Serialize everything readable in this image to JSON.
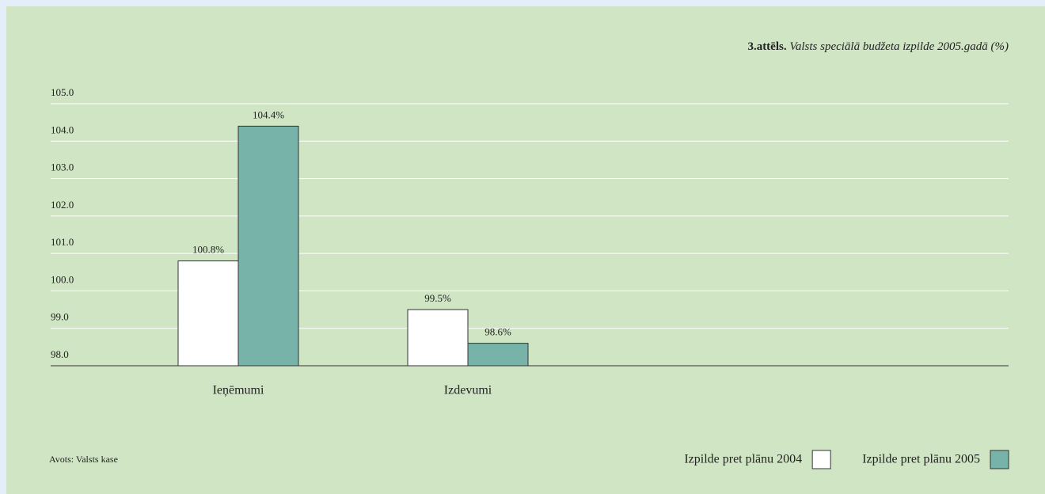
{
  "chart_data": {
    "type": "bar",
    "title_label": "3.attēls.",
    "title": "Valsts speciālā budžeta izpilde 2005.gadā (%)",
    "categories": [
      "Ieņēmumi",
      "Izdevumi"
    ],
    "series": [
      {
        "name": "Izpilde pret plānu 2004",
        "color": "#ffffff",
        "values": [
          100.8,
          99.5
        ],
        "value_labels": [
          "100.8%",
          "99.5%"
        ]
      },
      {
        "name": "Izpilde pret plānu 2005",
        "color": "#78b3aa",
        "values": [
          104.4,
          98.6
        ],
        "value_labels": [
          "104.4%",
          "98.6%"
        ]
      }
    ],
    "ylim": [
      98,
      105
    ],
    "yticks": [
      {
        "value": 98,
        "label": "98.0"
      },
      {
        "value": 99,
        "label": "99.0"
      },
      {
        "value": 100,
        "label": "100.0"
      },
      {
        "value": 101,
        "label": "101.0"
      },
      {
        "value": 102,
        "label": "102.0"
      },
      {
        "value": 103,
        "label": "103.0"
      },
      {
        "value": 104,
        "label": "104.0"
      },
      {
        "value": 105,
        "label": "105.0"
      }
    ],
    "grid": true,
    "source": "Avots: Valsts kase",
    "legend": "bottom-right"
  }
}
